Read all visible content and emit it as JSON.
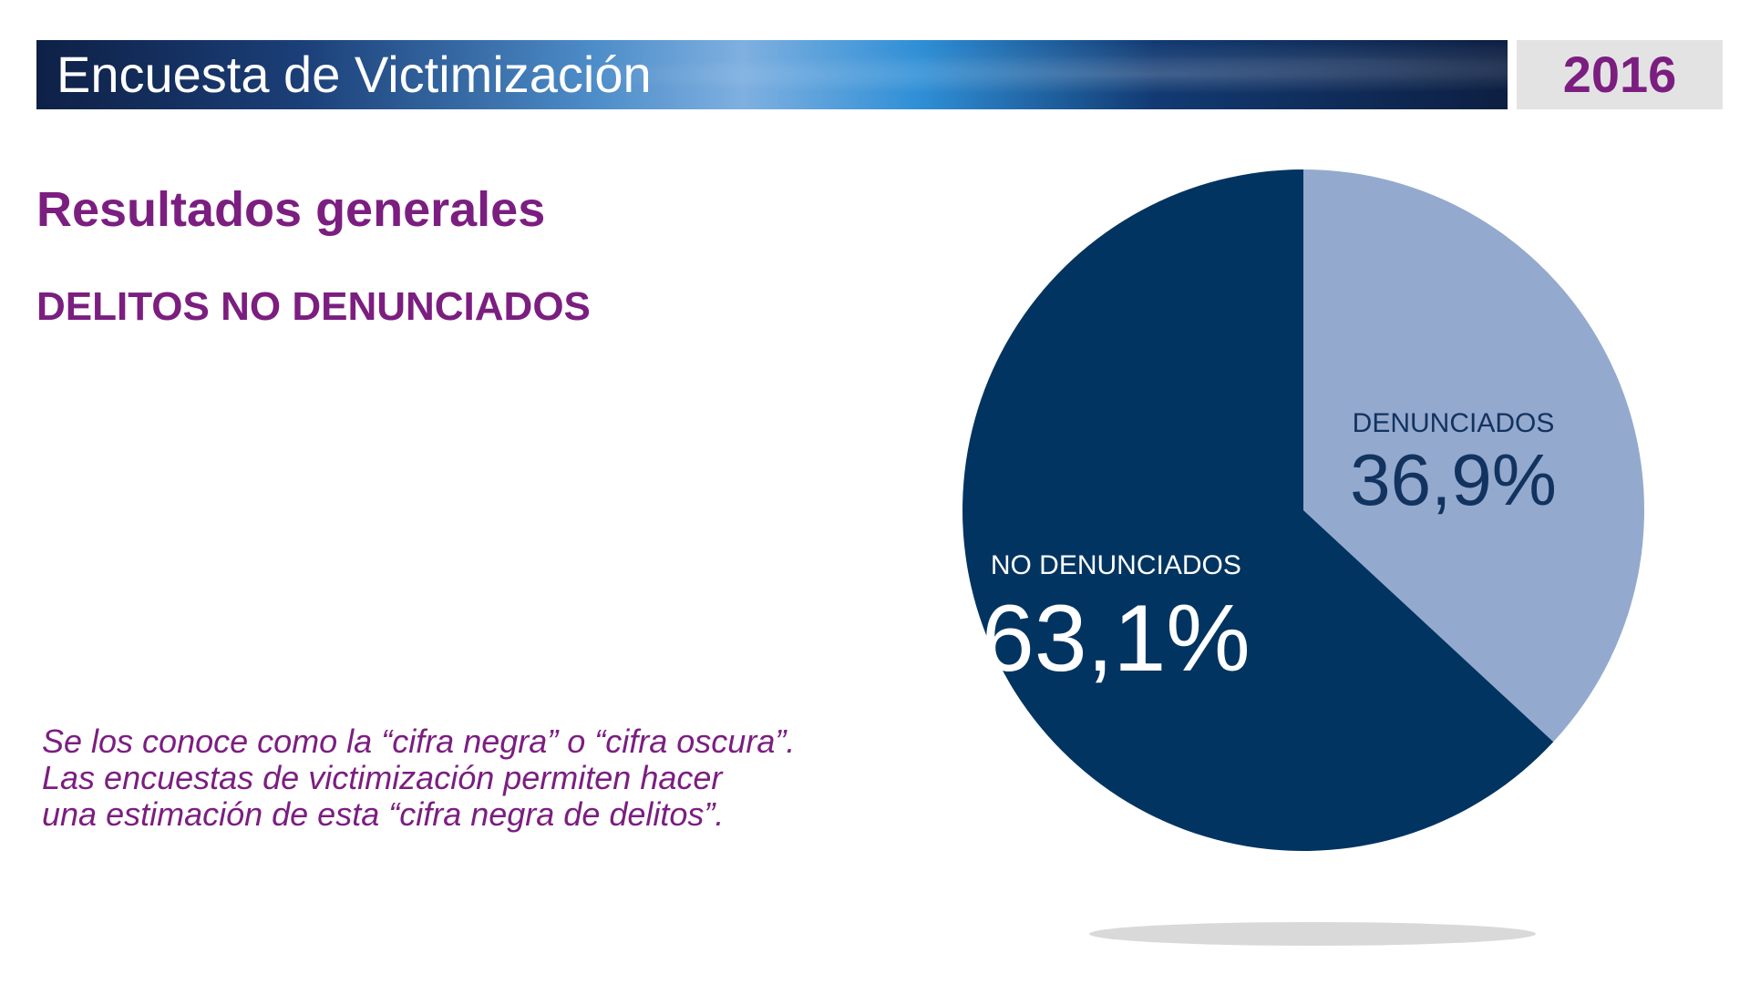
{
  "header": {
    "title": "Encuesta de Victimización",
    "year": "2016"
  },
  "section": {
    "title": "Resultados generales",
    "subtitle": "DELITOS NO DENUNCIADOS"
  },
  "note": {
    "lines": [
      "Se los conoce como la “cifra negra” o “cifra oscura”.",
      "Las encuestas de victimización permiten hacer",
      "una estimación de esta “cifra negra de delitos”."
    ]
  },
  "chart_data": {
    "type": "pie",
    "slices": [
      {
        "label": "DENUNCIADOS",
        "value": 36.9,
        "value_label": "36,9%",
        "color": "#94a9ce",
        "text_color": "#12335f"
      },
      {
        "label": "NO DENUNCIADOS",
        "value": 63.1,
        "value_label": "63,1%",
        "color": "#023461",
        "text_color": "#ffffff"
      }
    ],
    "start_angle": "12 o'clock, clockwise"
  },
  "colors": {
    "accent": "#7b1e80",
    "dark_navy": "#023461",
    "light_blue": "#94a9ce",
    "year_box": "#e3e3e4"
  }
}
